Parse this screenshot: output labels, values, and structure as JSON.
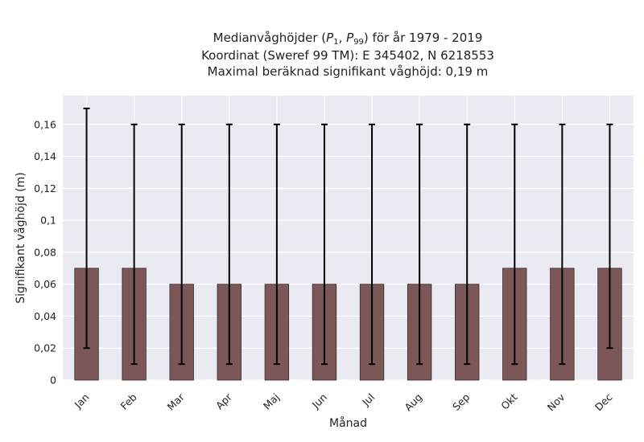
{
  "chart_data": {
    "type": "bar",
    "title_lines": [
      "Medianvåghöjder (P1, P99) för år 1979 - 2019",
      "Koordinat (Sweref 99 TM): E 345402, N 6218553",
      "Maximal beräknad signifikant våghöjd: 0,19 m"
    ],
    "title_math": {
      "prefix": "Medianvåghöjder (",
      "p_symbol": "P",
      "p1_sub": "1",
      "separator": ", ",
      "p99_sub": "99",
      "suffix": ") för år 1979 - 2019"
    },
    "xlabel": "Månad",
    "ylabel": "Signifikant våghöjd (m)",
    "categories": [
      "Jan",
      "Feb",
      "Mar",
      "Apr",
      "Maj",
      "Jun",
      "Jul",
      "Aug",
      "Sep",
      "Okt",
      "Nov",
      "Dec"
    ],
    "values": [
      0.07,
      0.07,
      0.06,
      0.06,
      0.06,
      0.06,
      0.06,
      0.06,
      0.06,
      0.07,
      0.07,
      0.07
    ],
    "error_low": [
      0.02,
      0.01,
      0.01,
      0.01,
      0.01,
      0.01,
      0.01,
      0.01,
      0.01,
      0.01,
      0.01,
      0.02
    ],
    "error_high": [
      0.17,
      0.16,
      0.16,
      0.16,
      0.16,
      0.16,
      0.16,
      0.16,
      0.16,
      0.16,
      0.16,
      0.16
    ],
    "ylim": [
      0,
      0.178
    ],
    "yticks": [
      0,
      0.02,
      0.04,
      0.06,
      0.08,
      0.1,
      0.12,
      0.14,
      0.16
    ],
    "ytick_labels": [
      "0",
      "0,02",
      "0,04",
      "0,06",
      "0,08",
      "0,1",
      "0,12",
      "0,14",
      "0,16"
    ],
    "grid": true,
    "colors": {
      "bar": "#7b5757",
      "bar_edge": "#3a2a2a",
      "error": "#000000",
      "plot_bg": "#eaeaf2",
      "grid": "#ffffff"
    }
  }
}
